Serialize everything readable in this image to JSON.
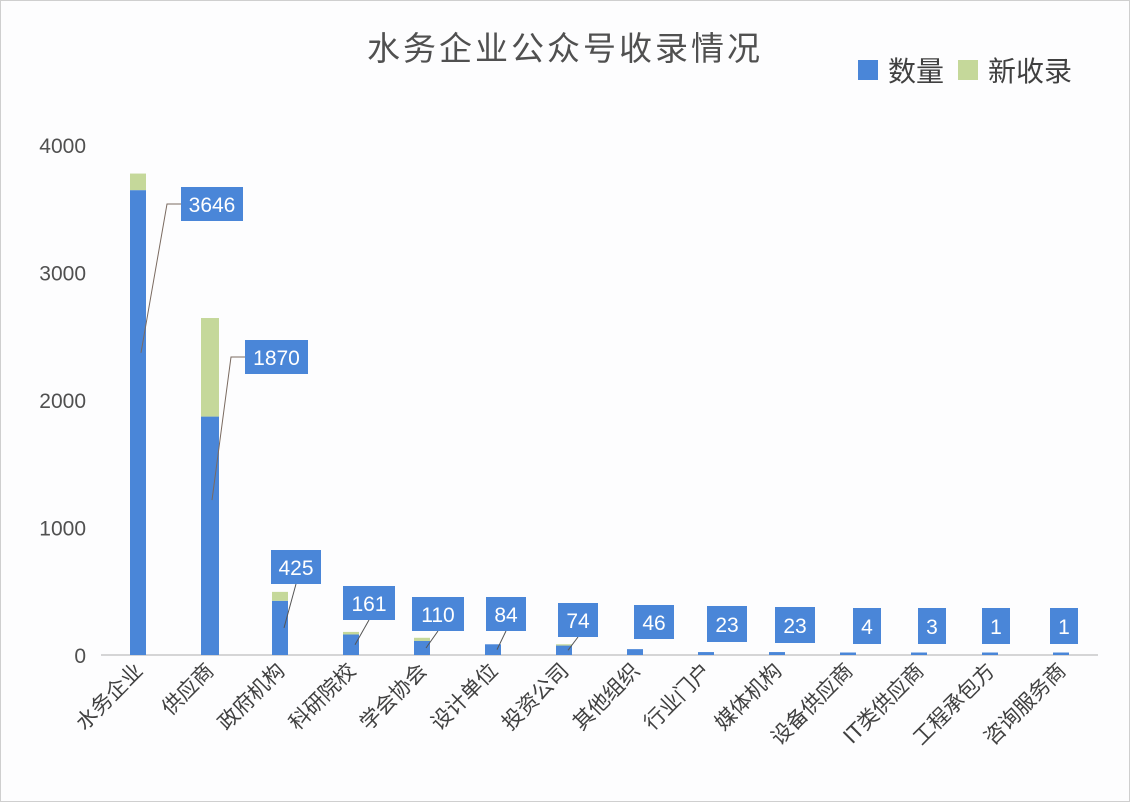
{
  "chart_data": {
    "type": "bar",
    "stacked": true,
    "title": "水务企业公众号收录情况",
    "xlabel": "",
    "ylabel": "",
    "ylim": [
      0,
      4000
    ],
    "yticks": [
      0,
      1000,
      2000,
      3000,
      4000
    ],
    "grid": false,
    "legend_position": "top-right",
    "categories": [
      "水务企业",
      "供应商",
      "政府机构",
      "科研院校",
      "学会协会",
      "设计单位",
      "投资公司",
      "其他组织",
      "行业门户",
      "媒体机构",
      "设备供应商",
      "IT类供应商",
      "工程承包方",
      "咨询服务商"
    ],
    "series": [
      {
        "name": "数量",
        "color": "#4a86d8",
        "values": [
          3646,
          1870,
          425,
          161,
          110,
          84,
          74,
          46,
          23,
          23,
          4,
          3,
          1,
          1
        ]
      },
      {
        "name": "新收录",
        "color": "#c5d89a",
        "values": [
          130,
          773,
          70,
          20,
          25,
          0,
          10,
          0,
          0,
          0,
          0,
          0,
          0,
          0
        ]
      }
    ],
    "data_labels": [
      "3646",
      "1870",
      "425",
      "161",
      "110",
      "84",
      "74",
      "46",
      "23",
      "23",
      "4",
      "3",
      "1",
      "1"
    ]
  },
  "legend": [
    {
      "label": "数量",
      "color": "#4a86d8"
    },
    {
      "label": "新收录",
      "color": "#c5d89a"
    }
  ]
}
